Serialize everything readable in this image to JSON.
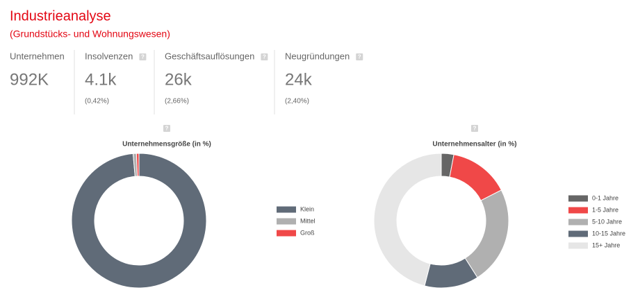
{
  "header": {
    "title": "Industrieanalyse",
    "subtitle": "(Grundstücks- und Wohnungswesen)",
    "help_icon": "?"
  },
  "kpis": [
    {
      "label": "Unternehmen",
      "value": "992K"
    },
    {
      "label": "Insolvenzen",
      "value": "4.1k",
      "note": "(0,42%)"
    },
    {
      "label": "Geschäftsauflösungen",
      "value": "26k",
      "note": "(2,66%)"
    },
    {
      "label": "Neugründungen",
      "value": "24k",
      "note": "(2,40%)"
    }
  ],
  "chart_data": [
    {
      "type": "donut",
      "title": "Unternehmensgröße (in %)",
      "categories": [
        "Klein",
        "Mittel",
        "Groß"
      ],
      "values": [
        98.6,
        0.8,
        0.6
      ],
      "colors": [
        "#606b78",
        "#b0b0b0",
        "#f04848"
      ],
      "legend": "right"
    },
    {
      "type": "donut",
      "title": "Unternehmensalter (in %)",
      "categories": [
        "0-1 Jahre",
        "1-5 Jahre",
        "5-10 Jahre",
        "10-15 Jahre",
        "15+ Jahre"
      ],
      "values": [
        3,
        14.5,
        23.5,
        13,
        46
      ],
      "colors": [
        "#666666",
        "#f04848",
        "#b0b0b0",
        "#606b78",
        "#e6e6e6"
      ],
      "legend": "right"
    }
  ]
}
